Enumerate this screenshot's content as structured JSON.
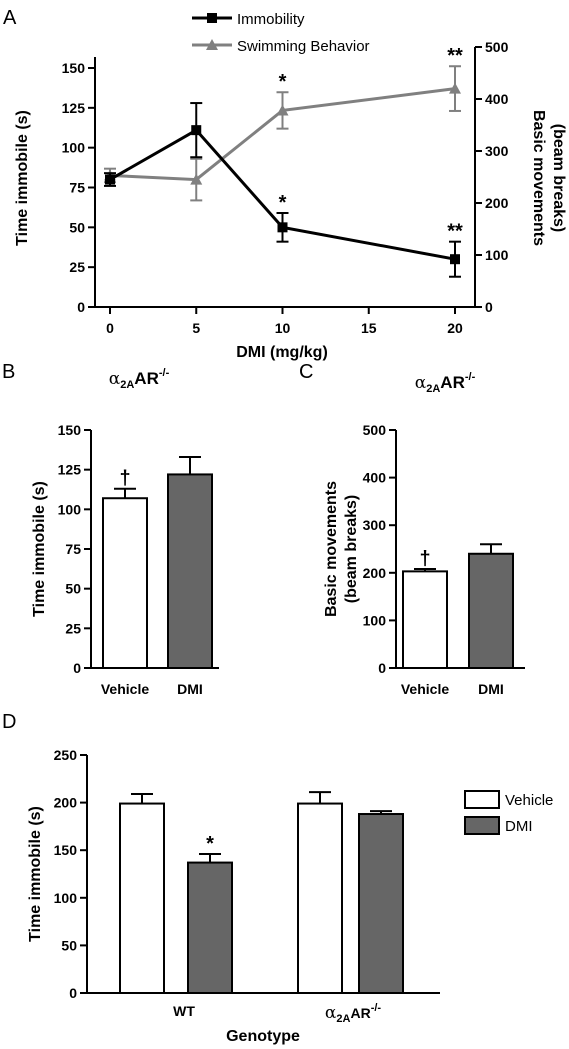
{
  "panels": {
    "A": {
      "letter": "A"
    },
    "B": {
      "letter": "B"
    },
    "C": {
      "letter": "C"
    },
    "D": {
      "letter": "D"
    }
  },
  "colors": {
    "immobility": "#000000",
    "swimming": "#808080",
    "vehicle_fill": "#ffffff",
    "dmi_fill": "#666666"
  },
  "chart_data": [
    {
      "id": "A",
      "type": "line",
      "xlabel": "DMI (mg/kg)",
      "ylabel": "Time immobile (s)",
      "y2label_line1": "Basic movements",
      "y2label_line2": "(beam breaks)",
      "xlim": [
        0,
        20
      ],
      "ylim": [
        0,
        150
      ],
      "y2lim": [
        0,
        500
      ],
      "x_ticks": [
        "0",
        "5",
        "10",
        "15",
        "20"
      ],
      "y_ticks": [
        "0",
        "25",
        "50",
        "75",
        "100",
        "125",
        "150"
      ],
      "y2_ticks": [
        "0",
        "100",
        "200",
        "300",
        "400",
        "500"
      ],
      "legend": "top",
      "series": [
        {
          "name": "Immobility",
          "axis": "left",
          "marker": "square",
          "x": [
            0,
            5,
            10,
            20
          ],
          "y": [
            80,
            111,
            50,
            30
          ],
          "err": [
            4,
            17,
            9,
            11
          ],
          "sig": [
            "",
            "",
            "*",
            "**"
          ]
        },
        {
          "name": "Swimming Behavior",
          "axis": "right",
          "marker": "triangle",
          "x": [
            0,
            5,
            10,
            20
          ],
          "y": [
            253,
            245,
            378,
            420
          ],
          "err": [
            13,
            40,
            35,
            43
          ],
          "sig": [
            "",
            "",
            "*",
            "**"
          ]
        }
      ]
    },
    {
      "id": "B",
      "type": "bar",
      "title_greek": "α",
      "title_sub": "2A",
      "title_main": "AR",
      "title_sup": "-/-",
      "ylabel": "Time immobile (s)",
      "ylim": [
        0,
        150
      ],
      "y_ticks": [
        "0",
        "25",
        "50",
        "75",
        "100",
        "125",
        "150"
      ],
      "categories": [
        "Vehicle",
        "DMI"
      ],
      "values": [
        107,
        122
      ],
      "err": [
        6,
        11
      ],
      "sig": [
        "†",
        ""
      ]
    },
    {
      "id": "C",
      "type": "bar",
      "title_greek": "α",
      "title_sub": "2A",
      "title_main": "AR",
      "title_sup": "-/-",
      "ylabel_line1": "Basic movements",
      "ylabel_line2": "(beam breaks)",
      "ylim": [
        0,
        500
      ],
      "y_ticks": [
        "0",
        "100",
        "200",
        "300",
        "400",
        "500"
      ],
      "categories": [
        "Vehicle",
        "DMI"
      ],
      "values": [
        203,
        240
      ],
      "err": [
        5,
        20
      ],
      "sig": [
        "†",
        ""
      ]
    },
    {
      "id": "D",
      "type": "bar",
      "xlabel": "Genotype",
      "ylabel": "Time immobile (s)",
      "ylim": [
        0,
        250
      ],
      "y_ticks": [
        "0",
        "50",
        "100",
        "150",
        "200",
        "250"
      ],
      "legend": "top-right",
      "groups": [
        {
          "label": "WT"
        },
        {
          "label_greek": "α",
          "label_sub": "2A",
          "label_main": "AR",
          "label_sup": "-/-"
        }
      ],
      "series": [
        {
          "name": "Vehicle",
          "values": [
            199,
            199
          ],
          "err": [
            10,
            12
          ],
          "sig": [
            "",
            ""
          ]
        },
        {
          "name": "DMI",
          "values": [
            137,
            188
          ],
          "err": [
            9,
            3
          ],
          "sig": [
            "*",
            ""
          ]
        }
      ]
    }
  ]
}
